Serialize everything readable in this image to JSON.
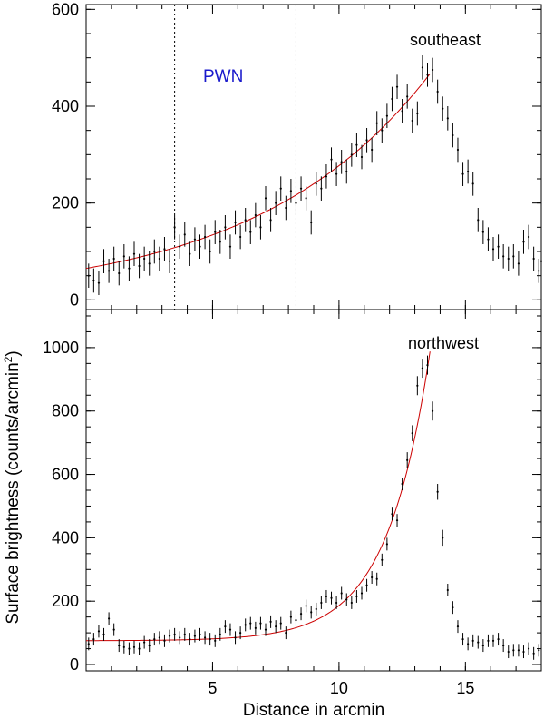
{
  "chart_data": {
    "type": "scatter",
    "shared_x_axis": {
      "label": "Distance in arcmin",
      "range": [
        0,
        18
      ],
      "ticks": [
        5,
        10,
        15
      ],
      "tick_labels": [
        "5",
        "10",
        "15"
      ]
    },
    "shared_y_label_parts": [
      "Surface brightness (counts/arcmin",
      "2",
      ")"
    ],
    "panels": [
      {
        "id": "southeast",
        "label": "southeast",
        "annotation": "PWN",
        "annotation_color": "#1a1acc",
        "region_lines_x": [
          3.5,
          8.3
        ],
        "ylim": [
          -20,
          610
        ],
        "yticks": [
          0,
          200,
          400,
          600
        ],
        "ytick_labels": [
          "0",
          "200",
          "400",
          "600"
        ],
        "data_color": "#000000",
        "fit_color": "#cc0000",
        "fit_range": [
          0.0,
          13.6
        ],
        "points": [
          {
            "x": 0.1,
            "y": 50,
            "e": 25
          },
          {
            "x": 0.3,
            "y": 40,
            "e": 25
          },
          {
            "x": 0.5,
            "y": 35,
            "e": 25
          },
          {
            "x": 0.7,
            "y": 80,
            "e": 25
          },
          {
            "x": 0.9,
            "y": 60,
            "e": 25
          },
          {
            "x": 1.1,
            "y": 85,
            "e": 25
          },
          {
            "x": 1.3,
            "y": 55,
            "e": 25
          },
          {
            "x": 1.5,
            "y": 90,
            "e": 25
          },
          {
            "x": 1.7,
            "y": 65,
            "e": 25
          },
          {
            "x": 1.9,
            "y": 95,
            "e": 25
          },
          {
            "x": 2.1,
            "y": 70,
            "e": 25
          },
          {
            "x": 2.3,
            "y": 85,
            "e": 25
          },
          {
            "x": 2.5,
            "y": 75,
            "e": 25
          },
          {
            "x": 2.7,
            "y": 100,
            "e": 25
          },
          {
            "x": 2.9,
            "y": 85,
            "e": 25
          },
          {
            "x": 3.1,
            "y": 105,
            "e": 25
          },
          {
            "x": 3.3,
            "y": 80,
            "e": 25
          },
          {
            "x": 3.5,
            "y": 150,
            "e": 25
          },
          {
            "x": 3.7,
            "y": 110,
            "e": 25
          },
          {
            "x": 3.9,
            "y": 135,
            "e": 25
          },
          {
            "x": 4.1,
            "y": 95,
            "e": 25
          },
          {
            "x": 4.3,
            "y": 125,
            "e": 25
          },
          {
            "x": 4.5,
            "y": 110,
            "e": 25
          },
          {
            "x": 4.7,
            "y": 130,
            "e": 25
          },
          {
            "x": 4.9,
            "y": 100,
            "e": 25
          },
          {
            "x": 5.1,
            "y": 140,
            "e": 25
          },
          {
            "x": 5.3,
            "y": 120,
            "e": 25
          },
          {
            "x": 5.5,
            "y": 150,
            "e": 25
          },
          {
            "x": 5.7,
            "y": 110,
            "e": 25
          },
          {
            "x": 5.9,
            "y": 160,
            "e": 25
          },
          {
            "x": 6.1,
            "y": 130,
            "e": 25
          },
          {
            "x": 6.3,
            "y": 165,
            "e": 25
          },
          {
            "x": 6.5,
            "y": 140,
            "e": 25
          },
          {
            "x": 6.7,
            "y": 175,
            "e": 25
          },
          {
            "x": 6.9,
            "y": 150,
            "e": 25
          },
          {
            "x": 7.1,
            "y": 210,
            "e": 25
          },
          {
            "x": 7.3,
            "y": 165,
            "e": 25
          },
          {
            "x": 7.5,
            "y": 200,
            "e": 25
          },
          {
            "x": 7.7,
            "y": 230,
            "e": 25
          },
          {
            "x": 7.9,
            "y": 190,
            "e": 25
          },
          {
            "x": 8.1,
            "y": 225,
            "e": 25
          },
          {
            "x": 8.3,
            "y": 200,
            "e": 25
          },
          {
            "x": 8.5,
            "y": 230,
            "e": 25
          },
          {
            "x": 8.7,
            "y": 210,
            "e": 25
          },
          {
            "x": 8.9,
            "y": 160,
            "e": 25
          },
          {
            "x": 9.1,
            "y": 240,
            "e": 25
          },
          {
            "x": 9.3,
            "y": 230,
            "e": 25
          },
          {
            "x": 9.5,
            "y": 255,
            "e": 25
          },
          {
            "x": 9.7,
            "y": 290,
            "e": 25
          },
          {
            "x": 9.9,
            "y": 260,
            "e": 25
          },
          {
            "x": 10.1,
            "y": 285,
            "e": 25
          },
          {
            "x": 10.3,
            "y": 265,
            "e": 25
          },
          {
            "x": 10.5,
            "y": 300,
            "e": 25
          },
          {
            "x": 10.7,
            "y": 320,
            "e": 25
          },
          {
            "x": 10.9,
            "y": 295,
            "e": 25
          },
          {
            "x": 11.1,
            "y": 330,
            "e": 25
          },
          {
            "x": 11.3,
            "y": 310,
            "e": 25
          },
          {
            "x": 11.5,
            "y": 365,
            "e": 25
          },
          {
            "x": 11.7,
            "y": 350,
            "e": 25
          },
          {
            "x": 11.9,
            "y": 380,
            "e": 25
          },
          {
            "x": 12.1,
            "y": 415,
            "e": 25
          },
          {
            "x": 12.3,
            "y": 440,
            "e": 25
          },
          {
            "x": 12.5,
            "y": 390,
            "e": 25
          },
          {
            "x": 12.7,
            "y": 420,
            "e": 25
          },
          {
            "x": 12.9,
            "y": 370,
            "e": 25
          },
          {
            "x": 13.1,
            "y": 385,
            "e": 25
          },
          {
            "x": 13.3,
            "y": 480,
            "e": 25
          },
          {
            "x": 13.5,
            "y": 465,
            "e": 25
          },
          {
            "x": 13.7,
            "y": 475,
            "e": 25
          },
          {
            "x": 13.9,
            "y": 430,
            "e": 25
          },
          {
            "x": 14.1,
            "y": 395,
            "e": 25
          },
          {
            "x": 14.3,
            "y": 375,
            "e": 25
          },
          {
            "x": 14.5,
            "y": 340,
            "e": 25
          },
          {
            "x": 14.7,
            "y": 310,
            "e": 25
          },
          {
            "x": 14.9,
            "y": 260,
            "e": 25
          },
          {
            "x": 15.1,
            "y": 265,
            "e": 25
          },
          {
            "x": 15.3,
            "y": 240,
            "e": 25
          },
          {
            "x": 15.5,
            "y": 165,
            "e": 25
          },
          {
            "x": 15.7,
            "y": 140,
            "e": 25
          },
          {
            "x": 15.9,
            "y": 125,
            "e": 25
          },
          {
            "x": 16.1,
            "y": 105,
            "e": 25
          },
          {
            "x": 16.3,
            "y": 110,
            "e": 25
          },
          {
            "x": 16.5,
            "y": 90,
            "e": 25
          },
          {
            "x": 16.7,
            "y": 85,
            "e": 25
          },
          {
            "x": 16.9,
            "y": 90,
            "e": 25
          },
          {
            "x": 17.1,
            "y": 75,
            "e": 25
          },
          {
            "x": 17.3,
            "y": 120,
            "e": 25
          },
          {
            "x": 17.5,
            "y": 130,
            "e": 25
          },
          {
            "x": 17.7,
            "y": 85,
            "e": 25
          },
          {
            "x": 17.9,
            "y": 60,
            "e": 25
          },
          {
            "x": 18.0,
            "y": 80,
            "e": 25
          }
        ],
        "fit": {
          "model": "exponential",
          "a": 65,
          "b": 0.145
        }
      },
      {
        "id": "northwest",
        "label": "northwest",
        "ylim": [
          -20,
          1120
        ],
        "yticks": [
          0,
          200,
          400,
          600,
          800,
          1000
        ],
        "ytick_labels": [
          "0",
          "200",
          "400",
          "600",
          "800",
          "1000"
        ],
        "data_color": "#000000",
        "fit_color": "#cc0000",
        "fit_range": [
          0.0,
          13.6
        ],
        "points": [
          {
            "x": 0.1,
            "y": 65,
            "e": 20
          },
          {
            "x": 0.3,
            "y": 80,
            "e": 20
          },
          {
            "x": 0.5,
            "y": 105,
            "e": 20
          },
          {
            "x": 0.7,
            "y": 95,
            "e": 20
          },
          {
            "x": 0.9,
            "y": 145,
            "e": 20
          },
          {
            "x": 1.1,
            "y": 110,
            "e": 20
          },
          {
            "x": 1.3,
            "y": 60,
            "e": 20
          },
          {
            "x": 1.5,
            "y": 55,
            "e": 20
          },
          {
            "x": 1.7,
            "y": 50,
            "e": 20
          },
          {
            "x": 1.9,
            "y": 55,
            "e": 20
          },
          {
            "x": 2.1,
            "y": 50,
            "e": 20
          },
          {
            "x": 2.3,
            "y": 70,
            "e": 20
          },
          {
            "x": 2.5,
            "y": 60,
            "e": 20
          },
          {
            "x": 2.7,
            "y": 80,
            "e": 20
          },
          {
            "x": 2.9,
            "y": 85,
            "e": 20
          },
          {
            "x": 3.1,
            "y": 75,
            "e": 20
          },
          {
            "x": 3.3,
            "y": 90,
            "e": 20
          },
          {
            "x": 3.5,
            "y": 95,
            "e": 20
          },
          {
            "x": 3.7,
            "y": 85,
            "e": 20
          },
          {
            "x": 3.9,
            "y": 95,
            "e": 20
          },
          {
            "x": 4.1,
            "y": 80,
            "e": 20
          },
          {
            "x": 4.3,
            "y": 90,
            "e": 20
          },
          {
            "x": 4.5,
            "y": 95,
            "e": 20
          },
          {
            "x": 4.7,
            "y": 85,
            "e": 20
          },
          {
            "x": 4.9,
            "y": 80,
            "e": 20
          },
          {
            "x": 5.1,
            "y": 75,
            "e": 20
          },
          {
            "x": 5.3,
            "y": 95,
            "e": 20
          },
          {
            "x": 5.5,
            "y": 120,
            "e": 20
          },
          {
            "x": 5.7,
            "y": 110,
            "e": 20
          },
          {
            "x": 5.9,
            "y": 85,
            "e": 20
          },
          {
            "x": 6.1,
            "y": 100,
            "e": 20
          },
          {
            "x": 6.3,
            "y": 125,
            "e": 20
          },
          {
            "x": 6.5,
            "y": 130,
            "e": 20
          },
          {
            "x": 6.7,
            "y": 115,
            "e": 20
          },
          {
            "x": 6.9,
            "y": 130,
            "e": 20
          },
          {
            "x": 7.1,
            "y": 110,
            "e": 20
          },
          {
            "x": 7.3,
            "y": 135,
            "e": 20
          },
          {
            "x": 7.5,
            "y": 120,
            "e": 20
          },
          {
            "x": 7.7,
            "y": 130,
            "e": 20
          },
          {
            "x": 7.9,
            "y": 100,
            "e": 20
          },
          {
            "x": 8.1,
            "y": 150,
            "e": 20
          },
          {
            "x": 8.3,
            "y": 140,
            "e": 20
          },
          {
            "x": 8.5,
            "y": 160,
            "e": 20
          },
          {
            "x": 8.7,
            "y": 185,
            "e": 20
          },
          {
            "x": 8.9,
            "y": 165,
            "e": 20
          },
          {
            "x": 9.1,
            "y": 175,
            "e": 20
          },
          {
            "x": 9.3,
            "y": 195,
            "e": 20
          },
          {
            "x": 9.5,
            "y": 215,
            "e": 20
          },
          {
            "x": 9.7,
            "y": 210,
            "e": 20
          },
          {
            "x": 9.9,
            "y": 195,
            "e": 20
          },
          {
            "x": 10.1,
            "y": 225,
            "e": 20
          },
          {
            "x": 10.3,
            "y": 205,
            "e": 20
          },
          {
            "x": 10.5,
            "y": 195,
            "e": 20
          },
          {
            "x": 10.7,
            "y": 215,
            "e": 20
          },
          {
            "x": 10.9,
            "y": 225,
            "e": 20
          },
          {
            "x": 11.1,
            "y": 250,
            "e": 20
          },
          {
            "x": 11.3,
            "y": 275,
            "e": 20
          },
          {
            "x": 11.5,
            "y": 270,
            "e": 20
          },
          {
            "x": 11.7,
            "y": 330,
            "e": 20
          },
          {
            "x": 11.9,
            "y": 380,
            "e": 20
          },
          {
            "x": 12.1,
            "y": 475,
            "e": 20
          },
          {
            "x": 12.3,
            "y": 455,
            "e": 20
          },
          {
            "x": 12.5,
            "y": 570,
            "e": 20
          },
          {
            "x": 12.7,
            "y": 645,
            "e": 25
          },
          {
            "x": 12.9,
            "y": 730,
            "e": 25
          },
          {
            "x": 13.1,
            "y": 880,
            "e": 30
          },
          {
            "x": 13.3,
            "y": 935,
            "e": 30
          },
          {
            "x": 13.5,
            "y": 945,
            "e": 30
          },
          {
            "x": 13.7,
            "y": 800,
            "e": 30
          },
          {
            "x": 13.9,
            "y": 545,
            "e": 25
          },
          {
            "x": 14.1,
            "y": 400,
            "e": 25
          },
          {
            "x": 14.3,
            "y": 235,
            "e": 20
          },
          {
            "x": 14.5,
            "y": 180,
            "e": 20
          },
          {
            "x": 14.7,
            "y": 120,
            "e": 20
          },
          {
            "x": 14.9,
            "y": 80,
            "e": 20
          },
          {
            "x": 15.1,
            "y": 65,
            "e": 20
          },
          {
            "x": 15.3,
            "y": 75,
            "e": 20
          },
          {
            "x": 15.5,
            "y": 70,
            "e": 20
          },
          {
            "x": 15.7,
            "y": 60,
            "e": 20
          },
          {
            "x": 15.9,
            "y": 75,
            "e": 20
          },
          {
            "x": 16.1,
            "y": 75,
            "e": 20
          },
          {
            "x": 16.3,
            "y": 80,
            "e": 20
          },
          {
            "x": 16.5,
            "y": 60,
            "e": 20
          },
          {
            "x": 16.7,
            "y": 40,
            "e": 20
          },
          {
            "x": 16.9,
            "y": 45,
            "e": 20
          },
          {
            "x": 17.1,
            "y": 45,
            "e": 20
          },
          {
            "x": 17.3,
            "y": 40,
            "e": 20
          },
          {
            "x": 17.5,
            "y": 50,
            "e": 20
          },
          {
            "x": 17.7,
            "y": 35,
            "e": 20
          },
          {
            "x": 17.9,
            "y": 45,
            "e": 20
          }
        ],
        "fit": {
          "model": "exponential_plus_constant",
          "c": 75,
          "a": 0.32,
          "b": 0.585
        }
      }
    ]
  }
}
